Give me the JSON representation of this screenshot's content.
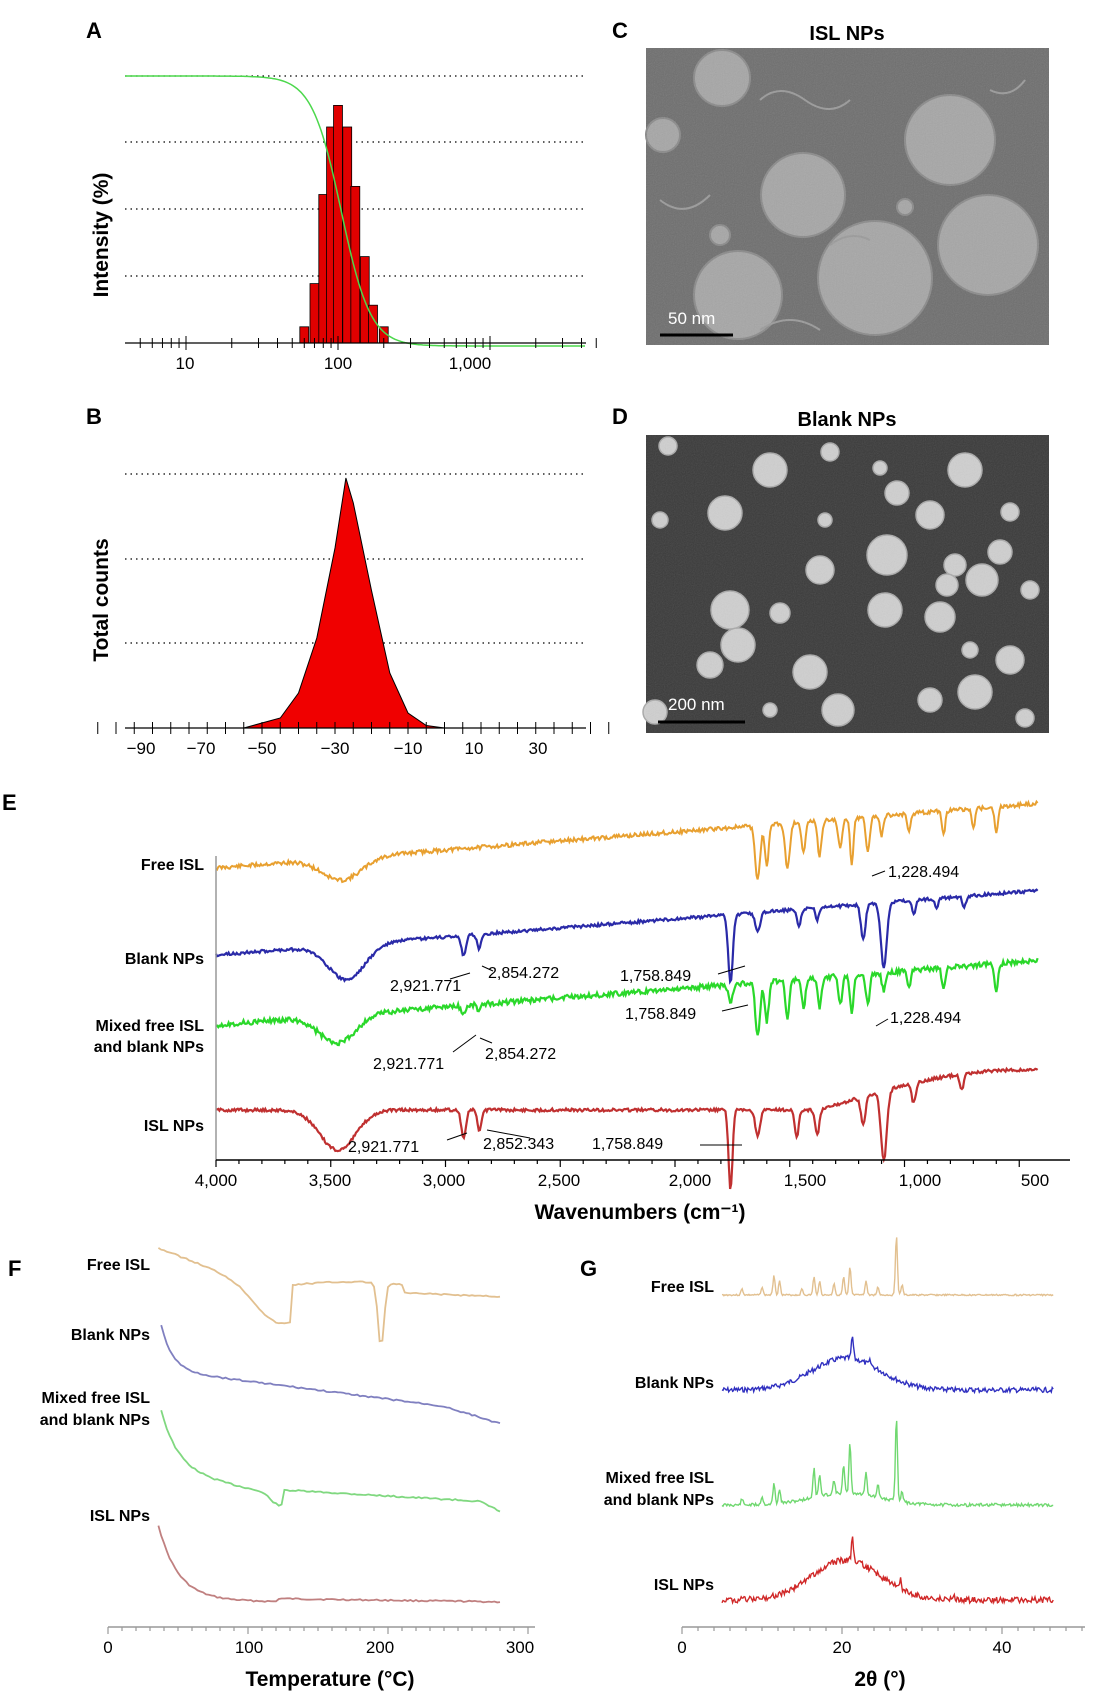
{
  "panels": {
    "A": {
      "label": "A",
      "ylabel": "Intensity (%)",
      "xticks": [
        "10",
        "100",
        "1,000"
      ]
    },
    "B": {
      "label": "B",
      "ylabel": "Total counts",
      "xticks": [
        "−90",
        "−70",
        "−50",
        "−30",
        "−10",
        "10",
        "30"
      ]
    },
    "C": {
      "label": "C",
      "title": "ISL NPs",
      "scale": "50 nm"
    },
    "D": {
      "label": "D",
      "title": "Blank NPs",
      "scale": "200 nm"
    },
    "E": {
      "label": "E",
      "xlabel": "Wavenumbers (cm⁻¹)",
      "xticks": [
        "4,000",
        "3,500",
        "3,000",
        "2,500",
        "2,000",
        "1,500",
        "1,000",
        "500"
      ],
      "series": [
        "Free ISL",
        "Blank NPs",
        "Mixed free ISL",
        "and blank NPs",
        "ISL NPs"
      ]
    },
    "F": {
      "label": "F",
      "xlabel": "Temperature (°C)",
      "xticks": [
        "0",
        "100",
        "200",
        "300"
      ],
      "series": [
        "Free ISL",
        "Blank NPs",
        "Mixed free ISL",
        "and blank NPs",
        "ISL NPs"
      ]
    },
    "G": {
      "label": "G",
      "xlabel": "2θ (°)",
      "xticks": [
        "0",
        "20",
        "40"
      ],
      "series": [
        "Free ISL",
        "Blank NPs",
        "Mixed free ISL",
        "and blank NPs",
        "ISL NPs"
      ]
    }
  },
  "colors": {
    "free": "#e8a030",
    "blank": "#2a2aa8",
    "mixed": "#2ad82a",
    "isl": "#c03030",
    "bar": "#e00000",
    "green_line": "#4cd84c"
  },
  "annotations": {
    "a1228_free": "1,228.494",
    "a2921_blank": "2,921.771",
    "a2854_blank": "2,854.272",
    "a1758_blank": "1,758.849",
    "a1758_mixed": "1,758.849",
    "a1228_mixed": "1,228.494",
    "a2921_mixed": "2,921.771",
    "a2854_mixed": "2,854.272",
    "a2921_isl": "2,921.771",
    "a2852_isl": "2,852.343",
    "a1758_isl": "1,758.849"
  },
  "chart_data": [
    {
      "panel": "A",
      "type": "bar",
      "xscale": "log",
      "bins": [
        60,
        70,
        80,
        90,
        100,
        115,
        130,
        150,
        170,
        200
      ],
      "values": [
        6,
        22,
        55,
        80,
        88,
        80,
        58,
        32,
        14,
        6
      ],
      "cumulative_line": true
    },
    {
      "panel": "B",
      "type": "area",
      "xlim": [
        -95,
        45
      ],
      "x": [
        -55,
        -45,
        -40,
        -35,
        -30,
        -27,
        -25,
        -20,
        -15,
        -10,
        -5,
        0
      ],
      "y": [
        0,
        4,
        14,
        36,
        72,
        100,
        90,
        55,
        22,
        6,
        1,
        0
      ]
    },
    {
      "panel": "E",
      "type": "line",
      "xlim": [
        4000,
        400
      ],
      "series": [
        {
          "name": "Free ISL"
        },
        {
          "name": "Blank NPs"
        },
        {
          "name": "Mixed free ISL and blank NPs"
        },
        {
          "name": "ISL NPs"
        }
      ],
      "peaks": [
        1228.494,
        2921.771,
        2854.272,
        1758.849,
        2852.343
      ]
    },
    {
      "panel": "F",
      "type": "line",
      "xlim": [
        0,
        300
      ],
      "series": [
        {
          "name": "Free ISL",
          "endotherm": 195
        },
        {
          "name": "Blank NPs"
        },
        {
          "name": "Mixed free ISL and blank NPs"
        },
        {
          "name": "ISL NPs"
        }
      ]
    },
    {
      "panel": "G",
      "type": "line",
      "xlim": [
        0,
        50
      ],
      "series": [
        {
          "name": "Free ISL"
        },
        {
          "name": "Blank NPs"
        },
        {
          "name": "Mixed free ISL and blank NPs"
        },
        {
          "name": "ISL NPs"
        }
      ]
    }
  ]
}
